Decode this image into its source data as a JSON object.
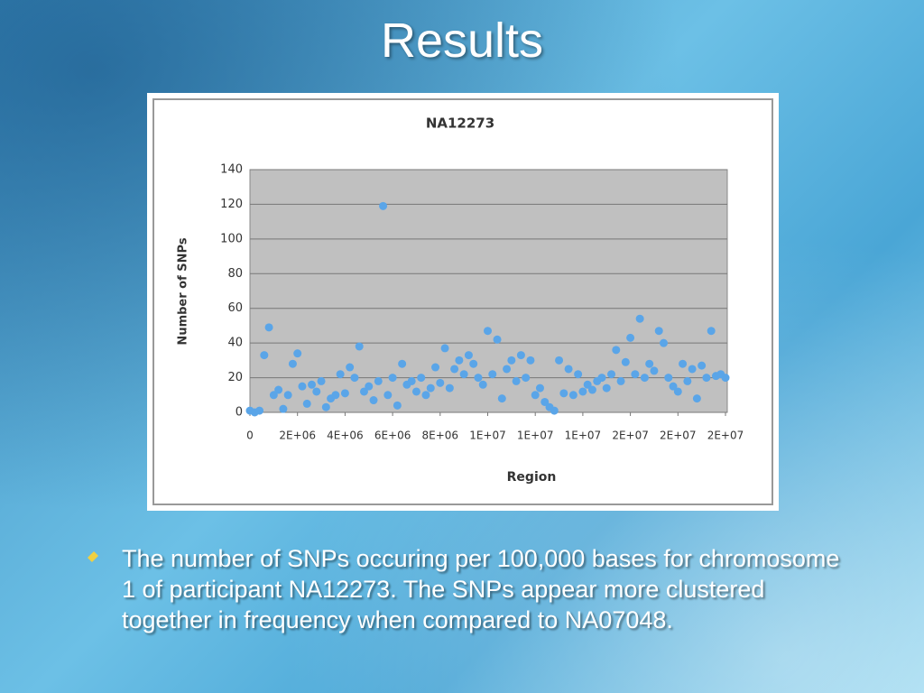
{
  "slide": {
    "title": "Results",
    "bullet": "The number of SNPs occuring per 100,000 bases for chromosome 1 of participant NA12273. The SNPs appear more clustered together in frequency when compared to NA07048."
  },
  "chart_data": {
    "type": "scatter",
    "title": "NA12273",
    "x_label": "Region",
    "y_label": "Number of SNPs",
    "color": "#5aa5e8",
    "grid": true,
    "xlim": [
      0,
      20000000
    ],
    "ylim": [
      0,
      140
    ],
    "yticks": [
      0,
      20,
      40,
      60,
      80,
      100,
      120,
      140
    ],
    "xticks": [
      0,
      {
        "value": 2000000,
        "label": "2E+06"
      },
      {
        "value": 4000000,
        "label": "4E+06"
      },
      {
        "value": 6000000,
        "label": "6E+06"
      },
      {
        "value": 8000000,
        "label": "8E+06"
      },
      {
        "value": 10000000,
        "label": "1E+07"
      },
      {
        "value": 12000000,
        "label": "1E+07"
      },
      {
        "value": 14000000,
        "label": "1E+07"
      },
      {
        "value": 16000000,
        "label": "2E+07"
      },
      {
        "value": 18000000,
        "label": "2E+07"
      },
      {
        "value": 20000000,
        "label": "2E+07"
      }
    ],
    "x": [
      0,
      200000,
      400000,
      600000,
      800000,
      1000000,
      1200000,
      1400000,
      1600000,
      1800000,
      2000000,
      2200000,
      2400000,
      2600000,
      2800000,
      3000000,
      3200000,
      3400000,
      3600000,
      3800000,
      4000000,
      4200000,
      4400000,
      4600000,
      4800000,
      5000000,
      5200000,
      5400000,
      5600000,
      5800000,
      6000000,
      6200000,
      6400000,
      6600000,
      6800000,
      7000000,
      7200000,
      7400000,
      7600000,
      7800000,
      8000000,
      8200000,
      8400000,
      8600000,
      8800000,
      9000000,
      9200000,
      9400000,
      9600000,
      9800000,
      10000000,
      10200000,
      10400000,
      10600000,
      10800000,
      11000000,
      11200000,
      11400000,
      11600000,
      11800000,
      12000000,
      12200000,
      12400000,
      12600000,
      12800000,
      13000000,
      13200000,
      13400000,
      13600000,
      13800000,
      14000000,
      14200000,
      14400000,
      14600000,
      14800000,
      15000000,
      15200000,
      15400000,
      15600000,
      15800000,
      16000000,
      16200000,
      16400000,
      16600000,
      16800000,
      17000000,
      17200000,
      17400000,
      17600000,
      17800000,
      18000000,
      18200000,
      18400000,
      18600000,
      18800000,
      19000000,
      19200000,
      19400000,
      19600000,
      19800000,
      20000000
    ],
    "values": [
      1,
      0,
      1,
      33,
      49,
      10,
      13,
      2,
      10,
      28,
      34,
      15,
      5,
      16,
      12,
      18,
      3,
      8,
      10,
      22,
      11,
      26,
      20,
      38,
      12,
      15,
      7,
      18,
      119,
      10,
      20,
      4,
      28,
      16,
      18,
      12,
      20,
      10,
      14,
      26,
      17,
      37,
      14,
      25,
      30,
      22,
      33,
      28,
      20,
      16,
      47,
      22,
      42,
      8,
      25,
      30,
      18,
      33,
      20,
      30,
      10,
      14,
      6,
      3,
      1,
      30,
      11,
      25,
      10,
      22,
      12,
      16,
      13,
      18,
      20,
      14,
      22,
      36,
      18,
      29,
      43,
      22,
      54,
      20,
      28,
      24,
      47,
      40,
      20,
      15,
      12,
      28,
      18,
      25,
      8,
      27,
      20,
      47,
      21,
      22,
      20
    ]
  }
}
